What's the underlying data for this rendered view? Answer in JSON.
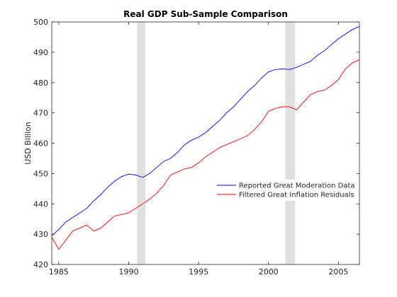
{
  "chart_data": {
    "type": "line",
    "title": "Real GDP Sub-Sample Comparison",
    "xlabel": "",
    "ylabel": "USD Billion",
    "xlim": [
      1984.5,
      2006.5
    ],
    "ylim": [
      420,
      500
    ],
    "xticks": [
      1985,
      1990,
      1995,
      2000,
      2005
    ],
    "yticks": [
      420,
      430,
      440,
      450,
      460,
      470,
      480,
      490,
      500
    ],
    "grid": false,
    "legend_position": "center-right",
    "recession_bands": [
      {
        "start": 1990.6,
        "end": 1991.2
      },
      {
        "start": 2001.2,
        "end": 2001.9
      }
    ],
    "series": [
      {
        "name": "Reported Great Moderation Data",
        "color": "#0000ff",
        "x": [
          1984.5,
          1985.0,
          1985.5,
          1986.0,
          1986.5,
          1987.0,
          1987.5,
          1988.0,
          1988.5,
          1989.0,
          1989.5,
          1990.0,
          1990.5,
          1991.0,
          1991.5,
          1992.0,
          1992.5,
          1993.0,
          1993.5,
          1994.0,
          1994.5,
          1995.0,
          1995.5,
          1996.0,
          1996.5,
          1997.0,
          1997.5,
          1998.0,
          1998.5,
          1999.0,
          1999.5,
          2000.0,
          2000.5,
          2001.0,
          2001.5,
          2002.0,
          2002.5,
          2003.0,
          2003.5,
          2004.0,
          2004.5,
          2005.0,
          2005.5,
          2006.0,
          2006.5
        ],
        "values": [
          429.5,
          431.5,
          434.0,
          435.5,
          437.0,
          438.5,
          441.0,
          443.0,
          445.5,
          447.5,
          449.0,
          449.8,
          449.5,
          448.7,
          450.0,
          452.0,
          454.0,
          455.0,
          457.0,
          459.5,
          461.0,
          462.0,
          463.5,
          465.5,
          467.5,
          470.0,
          472.0,
          474.5,
          477.0,
          479.0,
          481.5,
          483.5,
          484.3,
          484.5,
          484.3,
          485.0,
          486.0,
          487.0,
          489.0,
          490.5,
          492.5,
          494.5,
          496.0,
          497.5,
          498.5
        ]
      },
      {
        "name": "Filtered Great Inflation Residuals",
        "color": "#ff0000",
        "x": [
          1984.5,
          1985.0,
          1985.5,
          1986.0,
          1986.5,
          1987.0,
          1987.5,
          1988.0,
          1988.5,
          1989.0,
          1989.5,
          1990.0,
          1990.5,
          1991.0,
          1991.5,
          1992.0,
          1992.5,
          1993.0,
          1993.5,
          1994.0,
          1994.5,
          1995.0,
          1995.5,
          1996.0,
          1996.5,
          1997.0,
          1997.5,
          1998.0,
          1998.5,
          1999.0,
          1999.5,
          2000.0,
          2000.5,
          2001.0,
          2001.5,
          2002.0,
          2002.5,
          2003.0,
          2003.5,
          2004.0,
          2004.5,
          2005.0,
          2005.5,
          2006.0,
          2006.5
        ],
        "values": [
          429.0,
          425.0,
          428.0,
          431.0,
          432.0,
          433.0,
          431.0,
          432.0,
          434.0,
          436.0,
          436.5,
          437.0,
          438.5,
          440.0,
          441.5,
          443.5,
          446.0,
          449.5,
          450.5,
          451.5,
          452.0,
          453.5,
          455.5,
          457.0,
          458.5,
          459.5,
          460.5,
          461.5,
          462.5,
          464.5,
          467.0,
          470.5,
          471.5,
          472.0,
          472.0,
          471.0,
          473.5,
          476.0,
          477.0,
          477.5,
          479.0,
          481.0,
          484.5,
          486.5,
          487.5
        ]
      }
    ]
  }
}
